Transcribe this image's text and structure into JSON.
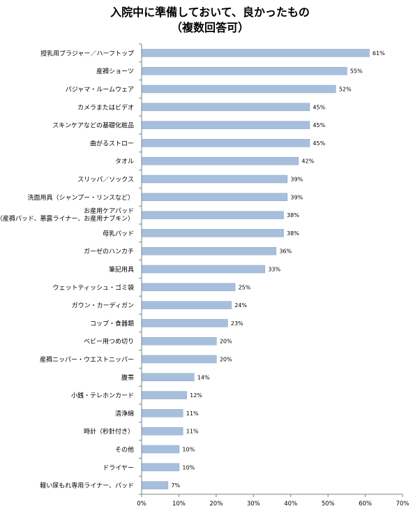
{
  "chart_data": {
    "type": "bar",
    "orientation": "horizontal",
    "title": [
      "入院中に準備しておいて、良かったもの",
      "（複数回答可）"
    ],
    "categories": [
      [
        "授乳用ブラジャー／ハーフトップ"
      ],
      [
        "産褥ショーツ"
      ],
      [
        "パジャマ・ルームウェア"
      ],
      [
        "カメラまたはビデオ"
      ],
      [
        "スキンケアなどの基礎化粧品"
      ],
      [
        "曲がるストロー"
      ],
      [
        "タオル"
      ],
      [
        "スリッパ／ソックス"
      ],
      [
        "洗面用具（シャンプー・リンスなど）"
      ],
      [
        "お産用ケアパッド",
        "（産褥パッド、悪露ライナー、お産用ナプキン）"
      ],
      [
        "母乳パッド"
      ],
      [
        "ガーゼのハンカチ"
      ],
      [
        "筆記用具"
      ],
      [
        "ウェットティッシュ・ゴミ袋"
      ],
      [
        "ガウン・カーディガン"
      ],
      [
        "コップ・食器類"
      ],
      [
        "ベビー用つめ切り"
      ],
      [
        "産褥ニッパー・ウエストニッパー"
      ],
      [
        "腹帯"
      ],
      [
        "小銭・テレホンカード"
      ],
      [
        "清浄綿"
      ],
      [
        "時計（秒針付き）"
      ],
      [
        "その他"
      ],
      [
        "ドライヤー"
      ],
      [
        "軽い尿もれ専用ライナー、パッド"
      ]
    ],
    "values": [
      61,
      55,
      52,
      45,
      45,
      45,
      42,
      39,
      39,
      38,
      38,
      36,
      33,
      25,
      24,
      23,
      20,
      20,
      14,
      12,
      11,
      11,
      10,
      10,
      7
    ],
    "value_labels": [
      "61%",
      "55%",
      "52%",
      "45%",
      "45%",
      "45%",
      "42%",
      "39%",
      "39%",
      "38%",
      "38%",
      "36%",
      "33%",
      "25%",
      "24%",
      "23%",
      "20%",
      "20%",
      "14%",
      "12%",
      "11%",
      "11%",
      "10%",
      "10%",
      "7%"
    ],
    "xlim": [
      0,
      70
    ],
    "xticks": [
      "0%",
      "10%",
      "20%",
      "30%",
      "40%",
      "50%",
      "60%",
      "70%"
    ],
    "bar_color": "#a7bfdc",
    "bar_stroke": "#8ea8c9",
    "grid": false
  }
}
